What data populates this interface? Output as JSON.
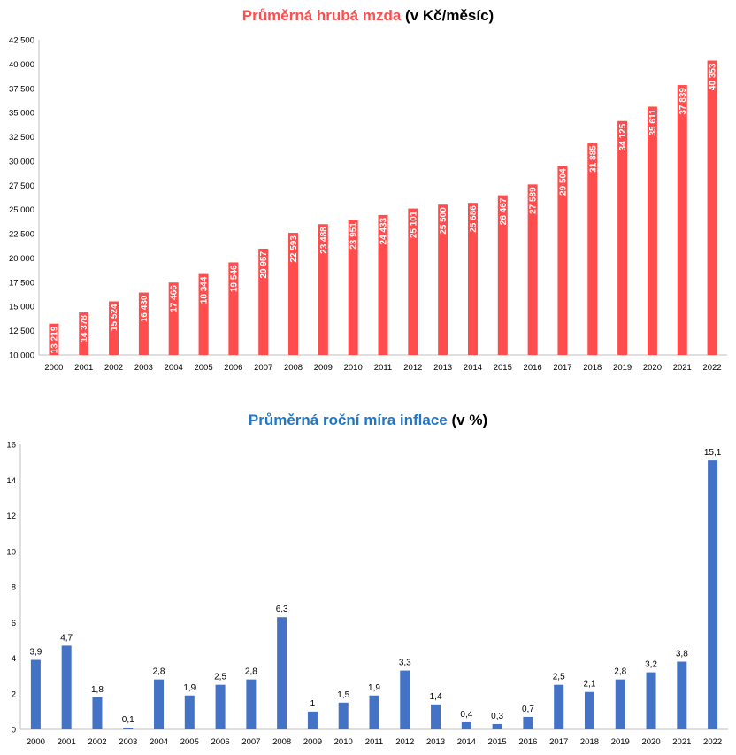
{
  "chart_data": [
    {
      "type": "bar",
      "title_main": "Průměrná hrubá mzda",
      "title_unit": "(v Kč/měsíc)",
      "color": "#ff4d4d",
      "title_color": "#ff4d4d",
      "categories": [
        "2000",
        "2001",
        "2002",
        "2003",
        "2004",
        "2005",
        "2006",
        "2007",
        "2008",
        "2009",
        "2010",
        "2011",
        "2012",
        "2013",
        "2014",
        "2015",
        "2016",
        "2017",
        "2018",
        "2019",
        "2020",
        "2021",
        "2022"
      ],
      "values": [
        13219,
        14378,
        15524,
        16430,
        17466,
        18344,
        19546,
        20957,
        22593,
        23488,
        23951,
        24433,
        25101,
        25500,
        25686,
        26467,
        27589,
        29504,
        31885,
        34125,
        35611,
        37839,
        40353
      ],
      "value_labels": [
        "13 219",
        "14 378",
        "15 524",
        "16 430",
        "17 466",
        "18 344",
        "19 546",
        "20 957",
        "22 593",
        "23 488",
        "23 951",
        "24 433",
        "25 101",
        "25 500",
        "25 686",
        "26 467",
        "27 589",
        "29 504",
        "31 885",
        "34 125",
        "35 611",
        "37 839",
        "40 353"
      ],
      "ylim": [
        10000,
        42500
      ],
      "yticks": [
        10000,
        12500,
        15000,
        17500,
        20000,
        22500,
        25000,
        27500,
        30000,
        32500,
        35000,
        37500,
        40000,
        42500
      ],
      "ytick_labels": [
        "10 000",
        "12 500",
        "15 000",
        "17 500",
        "20 000",
        "22 500",
        "25 000",
        "27 500",
        "30 000",
        "32 500",
        "35 000",
        "37 500",
        "40 000",
        "42 500"
      ],
      "grid": false,
      "legend": "none"
    },
    {
      "type": "bar",
      "title_main": "Průměrná roční míra inflace",
      "title_unit": "(v %)",
      "color": "#4472c4",
      "title_color": "#1f77c9",
      "categories": [
        "2000",
        "2001",
        "2002",
        "2003",
        "2004",
        "2005",
        "2006",
        "2007",
        "2008",
        "2009",
        "2010",
        "2011",
        "2012",
        "2013",
        "2014",
        "2015",
        "2016",
        "2017",
        "2018",
        "2019",
        "2020",
        "2021",
        "2022"
      ],
      "values": [
        3.9,
        4.7,
        1.8,
        0.1,
        2.8,
        1.9,
        2.5,
        2.8,
        6.3,
        1,
        1.5,
        1.9,
        3.3,
        1.4,
        0.4,
        0.3,
        0.7,
        2.5,
        2.1,
        2.8,
        3.2,
        3.8,
        15.1
      ],
      "value_labels": [
        "3,9",
        "4,7",
        "1,8",
        "0,1",
        "2,8",
        "1,9",
        "2,5",
        "2,8",
        "6,3",
        "1",
        "1,5",
        "1,9",
        "3,3",
        "1,4",
        "0,4",
        "0,3",
        "0,7",
        "2,5",
        "2,1",
        "2,8",
        "3,2",
        "3,8",
        "15,1"
      ],
      "ylim": [
        0,
        16
      ],
      "yticks": [
        0,
        2,
        4,
        6,
        8,
        10,
        12,
        14,
        16
      ],
      "ytick_labels": [
        "0",
        "2",
        "4",
        "6",
        "8",
        "10",
        "12",
        "14",
        "16"
      ],
      "grid": false,
      "legend": "none"
    }
  ]
}
